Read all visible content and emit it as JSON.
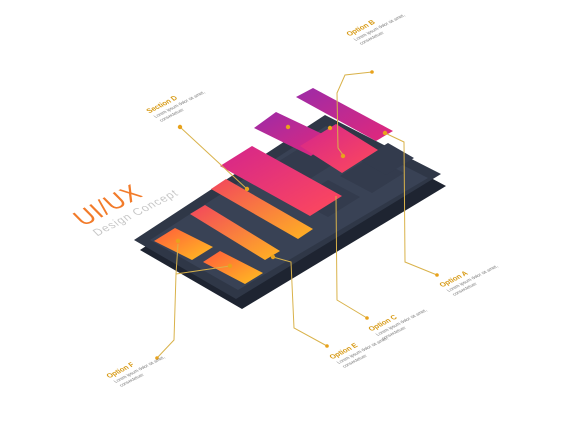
{
  "brand": {
    "title": "UI/UX",
    "subtitle": "Design Concept"
  },
  "callouts": [
    {
      "id": "option-b",
      "title": "Option B",
      "text": "Lorem ipsum dolor sit amet, consectetuer"
    },
    {
      "id": "section-d",
      "title": "Section D",
      "text": "Lorem ipsum dolor sit amet, consectetuer"
    },
    {
      "id": "option-a",
      "title": "Option A",
      "text": "Lorem ipsum dolor sit amet, consectetuer"
    },
    {
      "id": "option-c",
      "title": "Option C",
      "text": "Lorem ipsum dolor sit amet, consectetuer"
    },
    {
      "id": "option-e",
      "title": "Option E",
      "text": "Lorem ipsum dolor sit amet, consectetuer"
    },
    {
      "id": "option-f",
      "title": "Option F",
      "text": "Lorem ipsum dolor sit amet, consectetuer"
    }
  ],
  "colors": {
    "phone_body": "#2f3747",
    "phone_screen": "#3b4456",
    "accent": "#e8a21c",
    "magenta": "#c2268c",
    "pink": "#ee2f6f",
    "orange": "#fb8b22"
  }
}
